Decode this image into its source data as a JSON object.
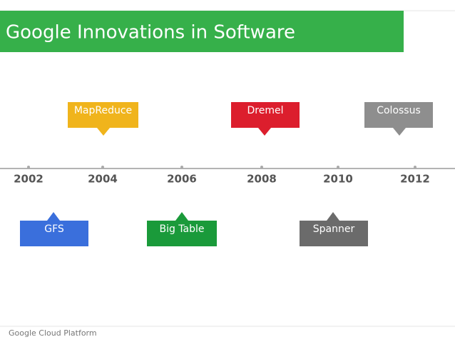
{
  "header": {
    "title": "Google Innovations in Software"
  },
  "timeline": {
    "years": [
      "2002",
      "2004",
      "2006",
      "2008",
      "2010",
      "2012"
    ]
  },
  "events": [
    {
      "label": "MapReduce",
      "color": "#f0b41c"
    },
    {
      "label": "Dremel",
      "color": "#dc1e2d"
    },
    {
      "label": "Colossus",
      "color": "#8e8e8e"
    },
    {
      "label": "GFS",
      "color": "#3a6fdc"
    },
    {
      "label": "Big Table",
      "color": "#1a9a3a"
    },
    {
      "label": "Spanner",
      "color": "#6b6b6b"
    }
  ],
  "footer": {
    "brand": "Google Cloud Platform"
  }
}
